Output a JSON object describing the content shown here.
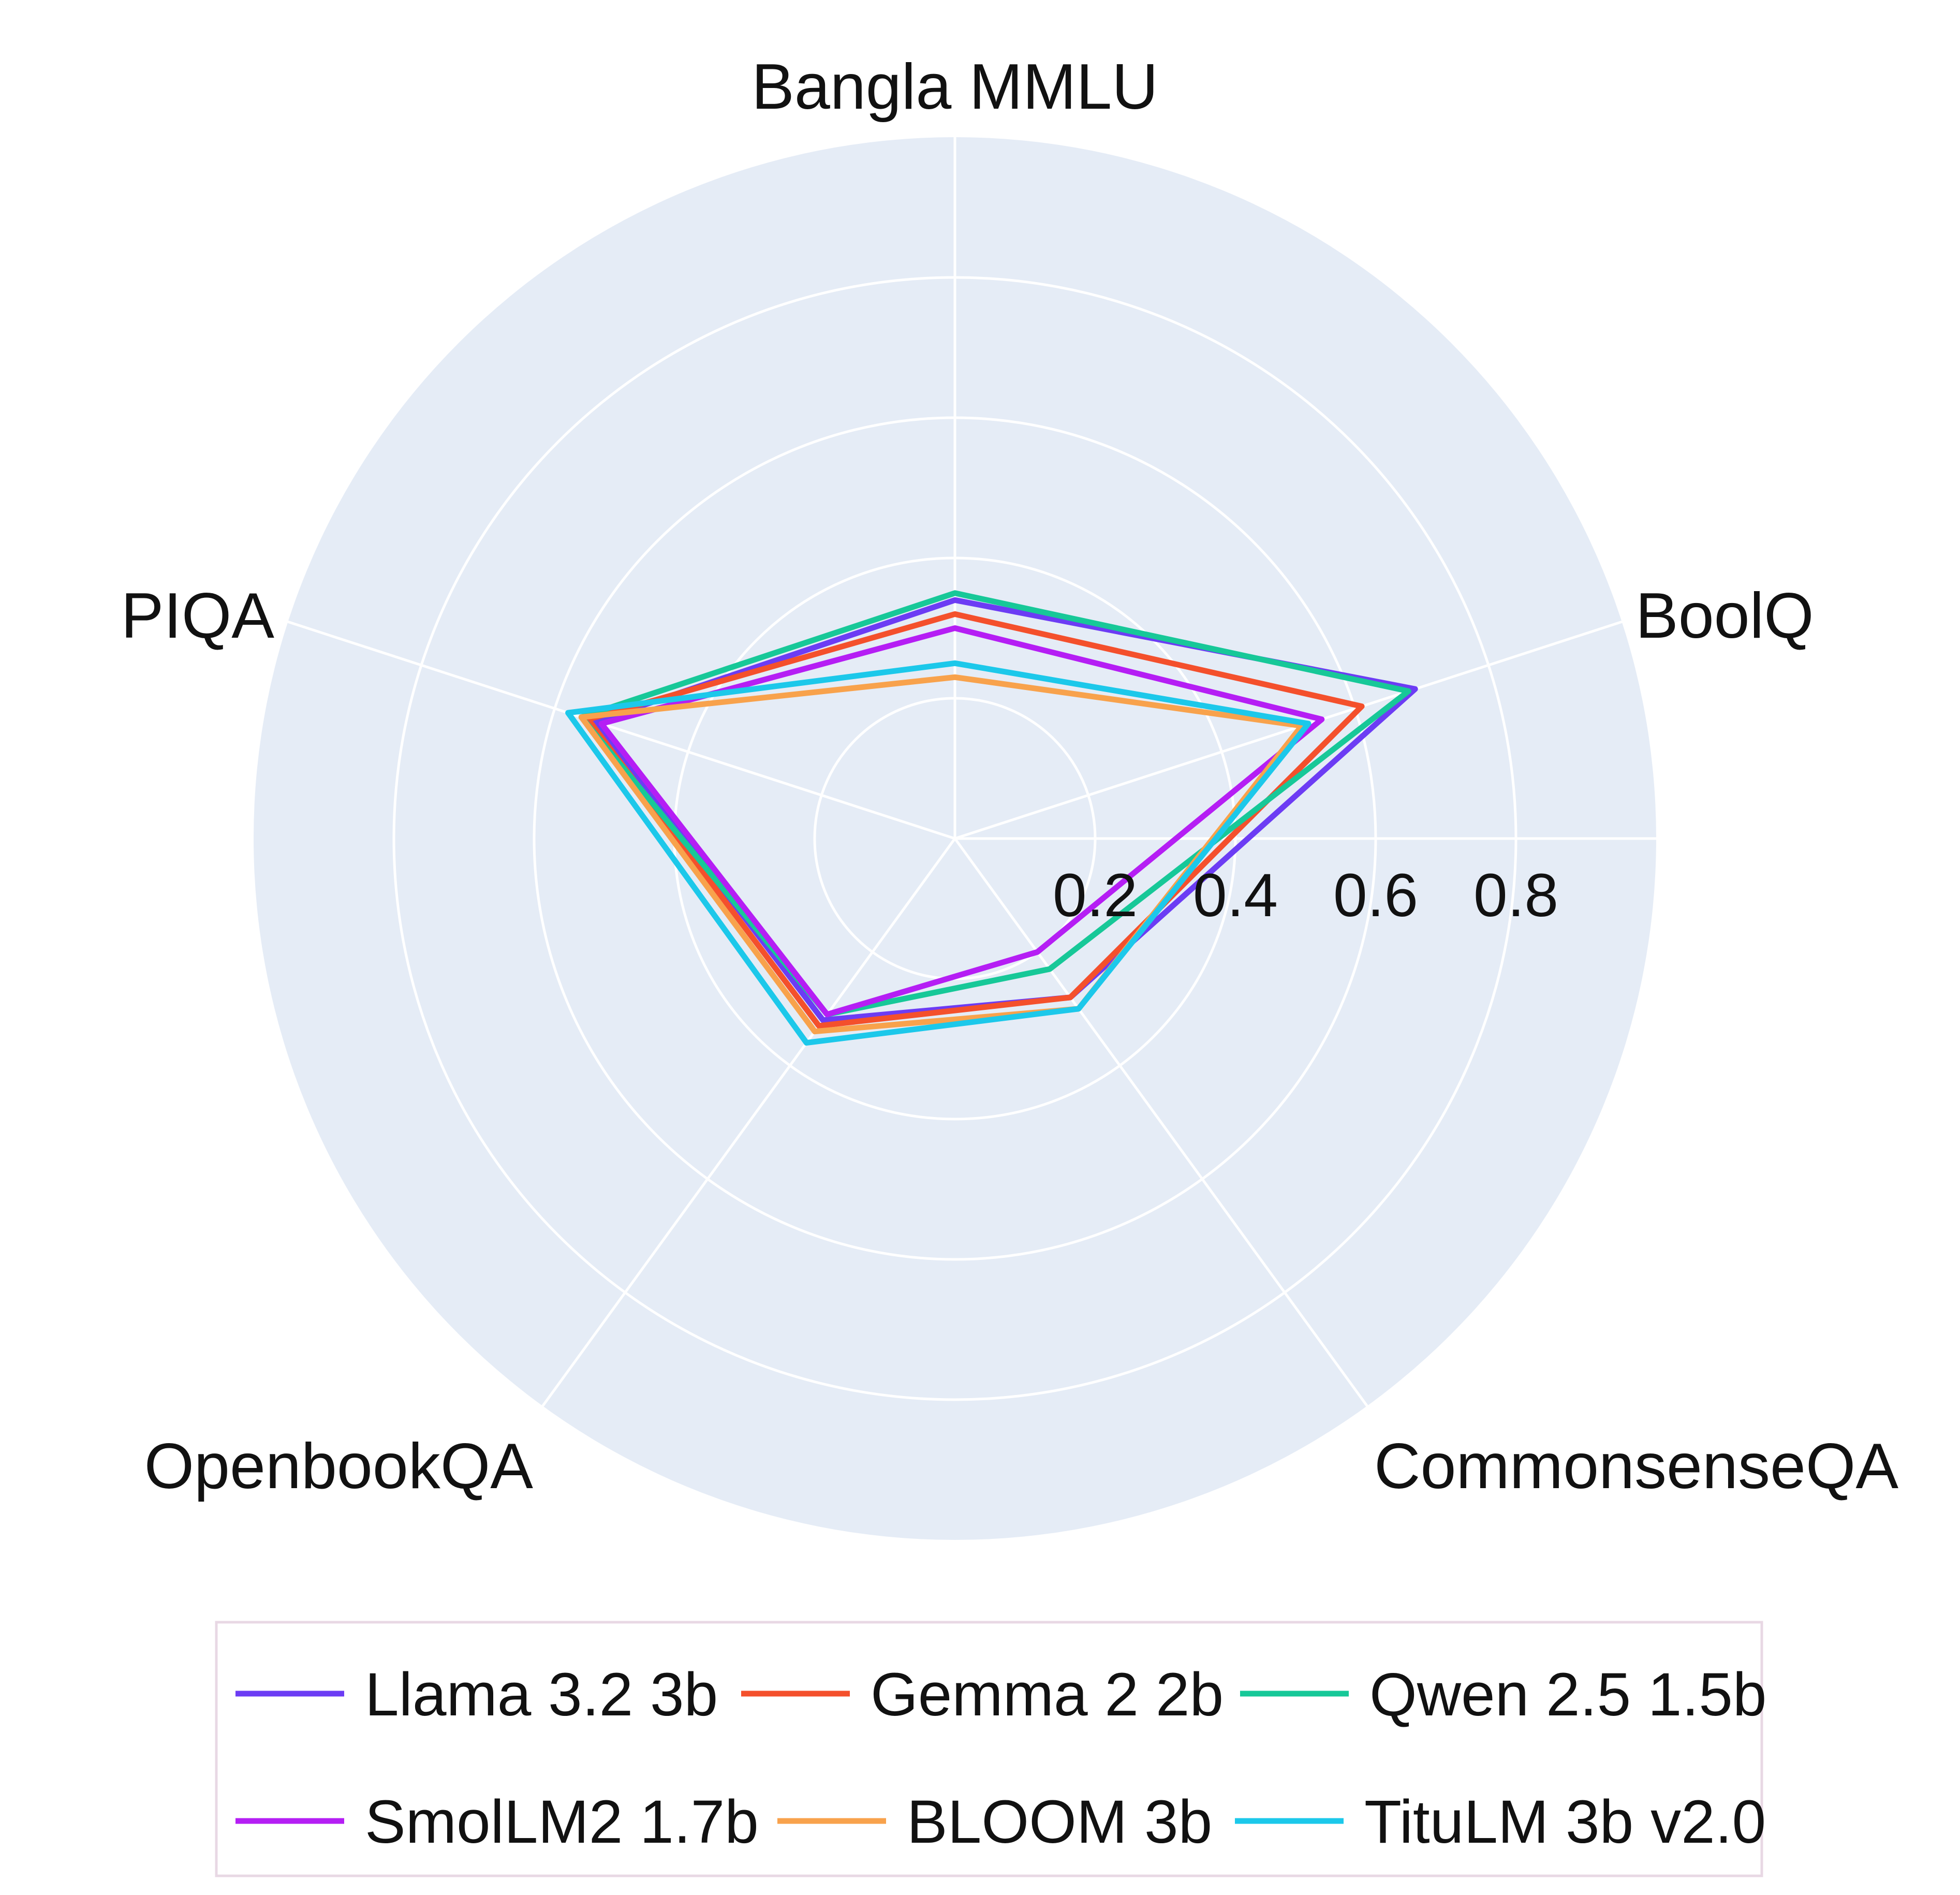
{
  "chart_data": {
    "type": "radar",
    "title": "",
    "axes": [
      "Bangla MMLU",
      "BoolQ",
      "CommonsenseQA",
      "OpenbookQA",
      "PIQA"
    ],
    "radial_ticks": [
      0.2,
      0.4,
      0.6,
      0.8
    ],
    "radial_tick_labels": [
      "0.2",
      "0.4",
      "0.6",
      "0.8"
    ],
    "rlim": [
      0,
      1.0
    ],
    "grid": true,
    "background_color": "#e5ecf6",
    "grid_color": "#ffffff",
    "legend_position": "bottom",
    "series": [
      {
        "name": "Llama 3.2 3b",
        "color": "#6c3cf4",
        "values": [
          0.34,
          0.69,
          0.28,
          0.32,
          0.54
        ]
      },
      {
        "name": "Gemma 2 2b",
        "color": "#f4502c",
        "values": [
          0.32,
          0.61,
          0.28,
          0.33,
          0.55
        ]
      },
      {
        "name": "Qwen 2.5 1.5b",
        "color": "#17c898",
        "values": [
          0.35,
          0.68,
          0.23,
          0.31,
          0.56
        ]
      },
      {
        "name": "SmolLM2 1.7b",
        "color": "#b51ef4",
        "values": [
          0.3,
          0.55,
          0.2,
          0.31,
          0.53
        ]
      },
      {
        "name": "BLOOM 3b",
        "color": "#f8a24c",
        "values": [
          0.23,
          0.52,
          0.3,
          0.34,
          0.56
        ]
      },
      {
        "name": "TituLM 3b v2.0",
        "color": "#1cc8ea",
        "values": [
          0.25,
          0.53,
          0.3,
          0.36,
          0.58
        ]
      }
    ]
  }
}
